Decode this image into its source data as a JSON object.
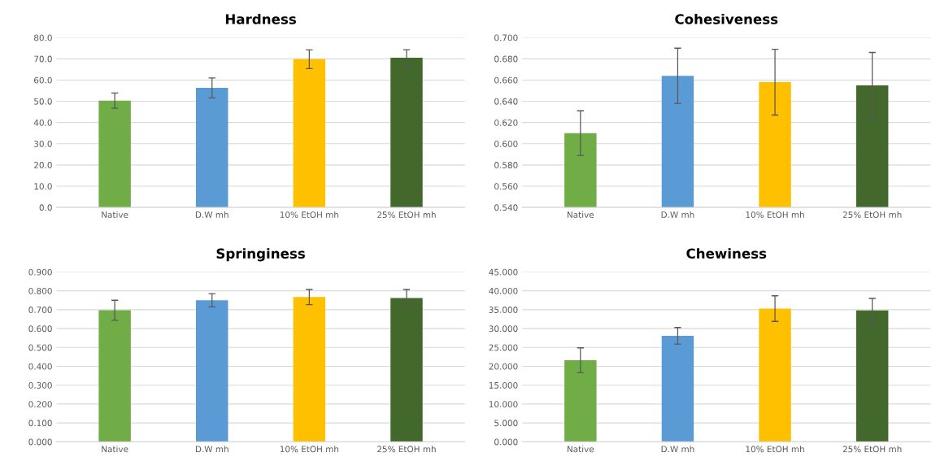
{
  "chart_data": [
    {
      "type": "bar",
      "title": "Hardness",
      "categories": [
        "Native",
        "D.W mh",
        "10% EtOH mh",
        "25% EtOH mh"
      ],
      "values": [
        50.3,
        56.3,
        69.8,
        70.5
      ],
      "errors": [
        3.6,
        4.7,
        4.4,
        3.8
      ],
      "colors": [
        "#70ad47",
        "#5b9bd5",
        "#ffc000",
        "#43682b"
      ],
      "ylim": [
        0,
        80
      ],
      "yticks": [
        {
          "value": 0,
          "label": "0.0"
        },
        {
          "value": 10,
          "label": "10.0"
        },
        {
          "value": 20,
          "label": "20.0"
        },
        {
          "value": 30,
          "label": "30.0"
        },
        {
          "value": 40,
          "label": "40.0"
        },
        {
          "value": 50,
          "label": "50.0"
        },
        {
          "value": 60,
          "label": "60.0"
        },
        {
          "value": 70,
          "label": "70.0"
        },
        {
          "value": 80,
          "label": "80.0"
        }
      ],
      "grid": "y",
      "legend": false
    },
    {
      "type": "bar",
      "title": "Cohesiveness",
      "categories": [
        "Native",
        "D.W mh",
        "10% EtOH mh",
        "25% EtOH mh"
      ],
      "values": [
        0.61,
        0.664,
        0.658,
        0.655
      ],
      "errors": [
        0.021,
        0.026,
        0.031,
        0.031
      ],
      "colors": [
        "#70ad47",
        "#5b9bd5",
        "#ffc000",
        "#43682b"
      ],
      "ylim": [
        0.54,
        0.7
      ],
      "yticks": [
        {
          "value": 0.54,
          "label": "0.540"
        },
        {
          "value": 0.56,
          "label": "0.560"
        },
        {
          "value": 0.58,
          "label": "0.580"
        },
        {
          "value": 0.6,
          "label": "0.600"
        },
        {
          "value": 0.62,
          "label": "0.620"
        },
        {
          "value": 0.64,
          "label": "0.640"
        },
        {
          "value": 0.66,
          "label": "0.660"
        },
        {
          "value": 0.68,
          "label": "0.680"
        },
        {
          "value": 0.7,
          "label": "0.700"
        }
      ],
      "grid": "y",
      "legend": false
    },
    {
      "type": "bar",
      "title": "Springiness",
      "categories": [
        "Native",
        "D.W mh",
        "10% EtOH mh",
        "25% EtOH mh"
      ],
      "values": [
        0.697,
        0.75,
        0.767,
        0.762
      ],
      "errors": [
        0.053,
        0.035,
        0.04,
        0.045
      ],
      "colors": [
        "#70ad47",
        "#5b9bd5",
        "#ffc000",
        "#43682b"
      ],
      "ylim": [
        0,
        0.9
      ],
      "yticks": [
        {
          "value": 0,
          "label": "0.000"
        },
        {
          "value": 0.1,
          "label": "0.100"
        },
        {
          "value": 0.2,
          "label": "0.200"
        },
        {
          "value": 0.3,
          "label": "0.300"
        },
        {
          "value": 0.4,
          "label": "0.400"
        },
        {
          "value": 0.5,
          "label": "0.500"
        },
        {
          "value": 0.6,
          "label": "0.600"
        },
        {
          "value": 0.7,
          "label": "0.700"
        },
        {
          "value": 0.8,
          "label": "0.800"
        },
        {
          "value": 0.9,
          "label": "0.900"
        }
      ],
      "grid": "y",
      "legend": false
    },
    {
      "type": "bar",
      "title": "Chewiness",
      "categories": [
        "Native",
        "D.W mh",
        "10% EtOH mh",
        "25% EtOH mh"
      ],
      "values": [
        21.6,
        28.1,
        35.3,
        34.8
      ],
      "errors": [
        3.3,
        2.2,
        3.4,
        3.2
      ],
      "colors": [
        "#70ad47",
        "#5b9bd5",
        "#ffc000",
        "#43682b"
      ],
      "ylim": [
        0,
        45
      ],
      "yticks": [
        {
          "value": 0,
          "label": "0.000"
        },
        {
          "value": 5,
          "label": "5.000"
        },
        {
          "value": 10,
          "label": "10.000"
        },
        {
          "value": 15,
          "label": "15.000"
        },
        {
          "value": 20,
          "label": "20.000"
        },
        {
          "value": 25,
          "label": "25.000"
        },
        {
          "value": 30,
          "label": "30.000"
        },
        {
          "value": 35,
          "label": "35.000"
        },
        {
          "value": 40,
          "label": "40.000"
        },
        {
          "value": 45,
          "label": "45.000"
        }
      ],
      "grid": "y",
      "legend": false
    }
  ]
}
